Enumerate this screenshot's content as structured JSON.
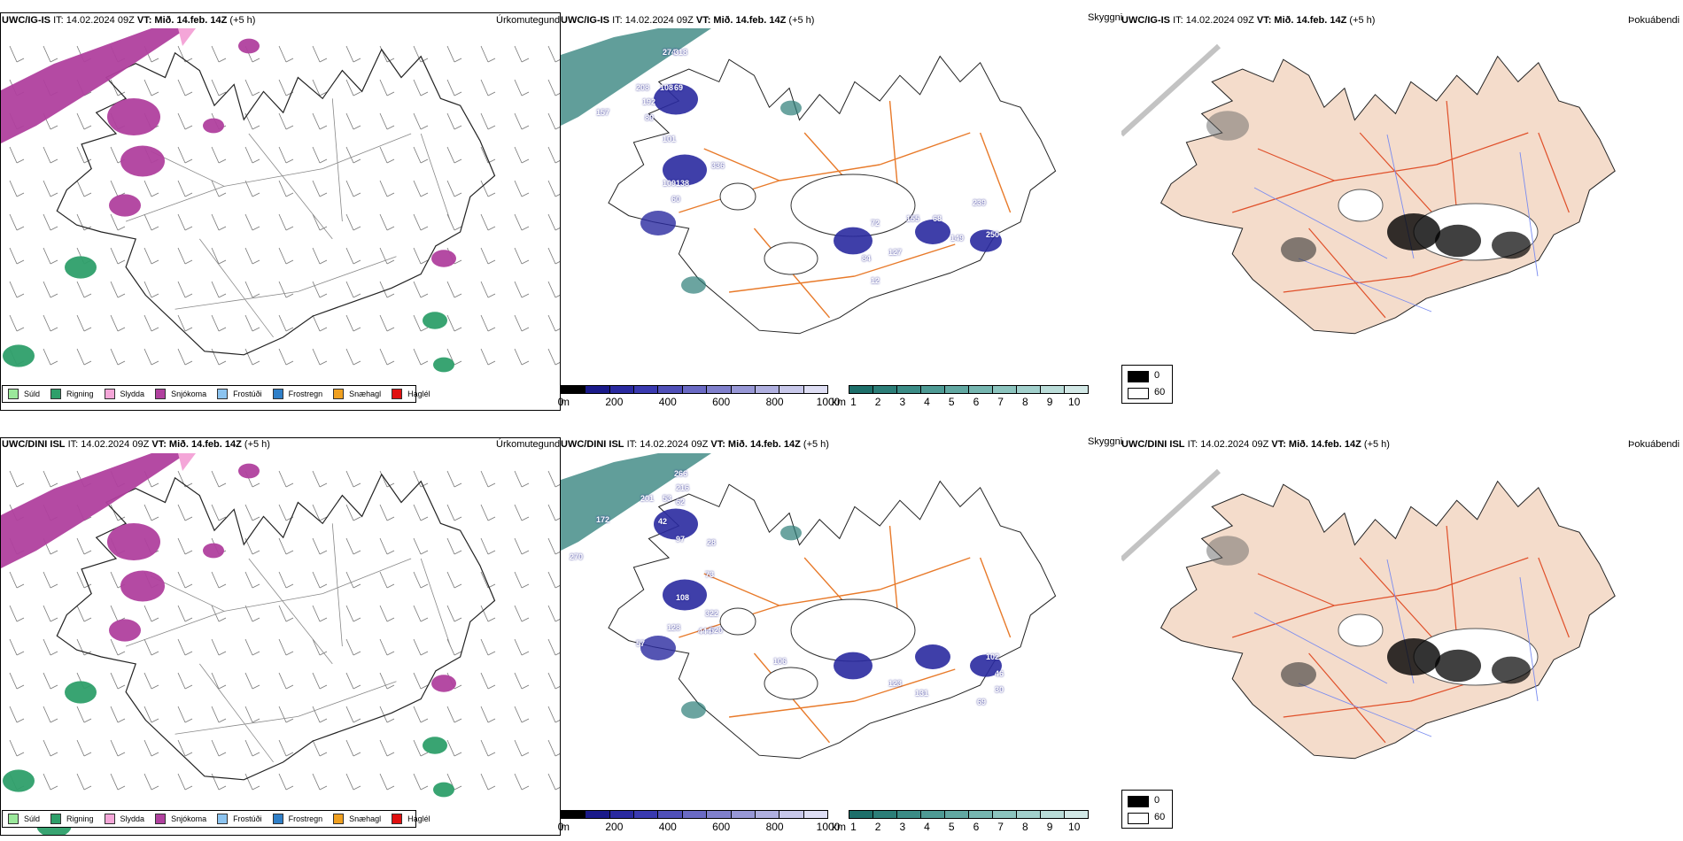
{
  "rows": [
    {
      "id": "row1",
      "col1_header": {
        "model": "UWC/IG-IS",
        "it": "IT: 14.02.2024 09Z",
        "vt_label": "VT:",
        "vt_value": "Mið. 14.feb. 14Z",
        "offset": "(+5 h)"
      },
      "col1_title": "Úrkomutegund",
      "col2_header": {
        "model": "UWC/IG-IS",
        "it": "IT: 14.02.2024 09Z",
        "vt_label": "VT:",
        "vt_value": "Mið. 14.feb. 14Z",
        "offset": "(+5 h)"
      },
      "col2_title": "Skyggni",
      "col3_header": {
        "model": "UWC/IG-IS",
        "it": "IT: 14.02.2024 09Z",
        "vt_label": "VT:",
        "vt_value": "Mið. 14.feb. 14Z",
        "offset": "(+5 h)"
      },
      "col3_title": "Þokuábendi",
      "labels": [
        "274",
        "318",
        "208",
        "108",
        "69",
        "192",
        "80",
        "157",
        "101",
        "336",
        "109",
        "138",
        "60",
        "72",
        "127",
        "155",
        "239",
        "68",
        "149",
        "250",
        "84",
        "12"
      ]
    },
    {
      "id": "row2",
      "col1_header": {
        "model": "UWC/DINI ISL",
        "it": "IT: 14.02.2024 09Z",
        "vt_label": "VT:",
        "vt_value": "Mið. 14.feb. 14Z",
        "offset": "(+5 h)"
      },
      "col1_title": "Úrkomutegund",
      "col2_header": {
        "model": "UWC/DINI ISL",
        "it": "IT: 14.02.2024 09Z",
        "vt_label": "VT:",
        "vt_value": "Mið. 14.feb. 14Z",
        "offset": "(+5 h)"
      },
      "col2_title": "Skyggni",
      "col3_header": {
        "model": "UWC/DINI ISL",
        "it": "IT: 14.02.2024 09Z",
        "vt_label": "VT:",
        "vt_value": "Mið. 14.feb. 14Z",
        "offset": "(+5 h)"
      },
      "col3_title": "Þokuábendi",
      "labels": [
        "266",
        "216",
        "201",
        "53",
        "62",
        "172",
        "42",
        "97",
        "270",
        "28",
        "73",
        "108",
        "322",
        "520",
        "128",
        "444",
        "57",
        "106",
        "123",
        "131",
        "102",
        "46",
        "30",
        "69"
      ]
    }
  ],
  "precip_legend": [
    {
      "label": "Súld",
      "color": "#9be89b"
    },
    {
      "label": "Rigning",
      "color": "#2e9f6a"
    },
    {
      "label": "Slydda",
      "color": "#f4a6d8"
    },
    {
      "label": "Snjókoma",
      "color": "#b0409e"
    },
    {
      "label": "Frostúði",
      "color": "#8cc4f0"
    },
    {
      "label": "Frostregn",
      "color": "#2f7fc8"
    },
    {
      "label": "Snæhagl",
      "color": "#f0a020"
    },
    {
      "label": "Haglél",
      "color": "#e01010"
    }
  ],
  "cloud_colorbar": {
    "unit": "m",
    "ticks": [
      "0",
      "200",
      "400",
      "600",
      "800",
      "1000"
    ],
    "colors": [
      "#000000",
      "#1a1a8a",
      "#2a2aa0",
      "#3a3ab0",
      "#5050b8",
      "#6a6ac4",
      "#8080cc",
      "#9898d6",
      "#b0b0e0",
      "#c8c8ea",
      "#dedef4"
    ]
  },
  "vis_colorbar": {
    "unit": "km",
    "ticks": [
      "1",
      "2",
      "3",
      "4",
      "5",
      "6",
      "7",
      "8",
      "9",
      "10"
    ],
    "colors": [
      "#1d6f6a",
      "#2c7e78",
      "#3b8c86",
      "#4e9a94",
      "#62a8a2",
      "#76b6b0",
      "#8cc4be",
      "#a2d0cc",
      "#badcd8",
      "#d2e8e6"
    ]
  },
  "fog_legend": [
    {
      "label": "0",
      "color": "#000000"
    },
    {
      "label": "60",
      "color": "#ffffff"
    }
  ],
  "colors": {
    "land_fog": "#f4dccb",
    "roads": "#e87a2a",
    "rivers": "#7a8cf0",
    "coast": "#222222",
    "snow": "#b0409e",
    "rain": "#2e9f6a",
    "low_cloud": "#2a2aa0",
    "fog_low": "#2c7e78"
  }
}
